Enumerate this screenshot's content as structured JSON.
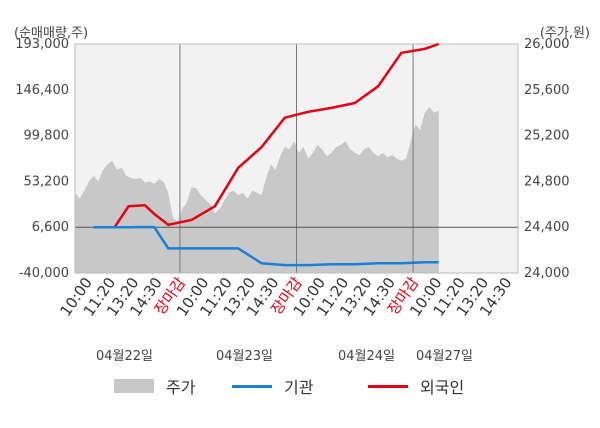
{
  "chart_data": {
    "type": "line",
    "left_axis_label": "(순매매량,주)",
    "right_axis_label": "(주가,원)",
    "left_ticks": [
      "193,000",
      "146,400",
      "99,800",
      "53,200",
      "6,600",
      "-40,000"
    ],
    "right_ticks": [
      "26,000",
      "25,600",
      "25,200",
      "24,800",
      "24,400",
      "24,000"
    ],
    "left_ylim": [
      -40000,
      193000
    ],
    "right_ylim": [
      24000,
      26000
    ],
    "x_ticks": [
      "10:00",
      "11:20",
      "13:20",
      "14:30",
      "장마감",
      "10:00",
      "11:20",
      "13:20",
      "14:30",
      "장마감",
      "10:00",
      "11:20",
      "13:20",
      "14:30",
      "장마감",
      "10:00",
      "11:20",
      "13:20",
      "14:30"
    ],
    "x_tick_colors": [
      "#333",
      "#333",
      "#333",
      "#333",
      "#e60012",
      "#333",
      "#333",
      "#333",
      "#333",
      "#e60012",
      "#333",
      "#333",
      "#333",
      "#333",
      "#e60012",
      "#333",
      "#333",
      "#333",
      "#333"
    ],
    "dates": [
      "04월22일",
      "04월23일",
      "04월24일",
      "04월27일"
    ],
    "zero_line": 6600,
    "series": [
      {
        "name": "외국인",
        "color": "#e60012",
        "x": [
          0.8,
          1.7,
          2.3,
          3.0,
          3.4,
          4.0,
          5.0,
          6.0,
          7.0,
          8.0,
          9.0,
          10.0,
          11.0,
          12.0,
          13.0,
          14.0,
          15.0,
          15.6
        ],
        "values": [
          6600,
          6600,
          28000,
          29000,
          20000,
          9000,
          14000,
          28000,
          67000,
          88000,
          118000,
          124000,
          128000,
          133000,
          150000,
          184000,
          188000,
          193000
        ]
      },
      {
        "name": "기관",
        "color": "#1a7fd6",
        "x": [
          0.8,
          1.7,
          2.3,
          3.0,
          3.4,
          4.0,
          5.0,
          6.0,
          7.0,
          8.0,
          9.0,
          10.0,
          11.0,
          12.0,
          13.0,
          14.0,
          15.0,
          15.6
        ],
        "values": [
          6600,
          6600,
          6600,
          6800,
          6600,
          -15000,
          -15000,
          -15000,
          -15000,
          -30000,
          -32000,
          -32000,
          -31000,
          -31000,
          -30000,
          -30000,
          -29000,
          -29000
        ]
      }
    ],
    "price": {
      "name": "주가",
      "color": "#c8c8c8",
      "x": [
        0,
        0.2,
        0.4,
        0.6,
        0.8,
        1.0,
        1.2,
        1.4,
        1.6,
        1.8,
        2.0,
        2.2,
        2.4,
        2.6,
        2.8,
        3.0,
        3.2,
        3.4,
        3.6,
        3.8,
        4.0,
        4.2,
        4.4,
        4.6,
        4.8,
        5.0,
        5.2,
        5.4,
        5.6,
        5.8,
        6.0,
        6.2,
        6.4,
        6.6,
        6.8,
        7.0,
        7.2,
        7.4,
        7.6,
        7.8,
        8.0,
        8.2,
        8.4,
        8.6,
        8.8,
        9.0,
        9.2,
        9.4,
        9.6,
        9.8,
        10.0,
        10.2,
        10.4,
        10.6,
        10.8,
        11.0,
        11.2,
        11.4,
        11.6,
        11.8,
        12.0,
        12.2,
        12.4,
        12.6,
        12.8,
        13.0,
        13.2,
        13.4,
        13.6,
        13.8,
        14.0,
        14.2,
        14.4,
        14.6,
        14.8,
        15.0,
        15.2,
        15.4,
        15.6
      ],
      "values": [
        24700,
        24650,
        24720,
        24800,
        24850,
        24800,
        24900,
        24950,
        24980,
        24900,
        24920,
        24850,
        24830,
        24820,
        24830,
        24790,
        24800,
        24780,
        24820,
        24800,
        24700,
        24480,
        24450,
        24560,
        24620,
        24750,
        24740,
        24680,
        24640,
        24600,
        24520,
        24560,
        24630,
        24700,
        24720,
        24680,
        24700,
        24650,
        24720,
        24700,
        24680,
        24830,
        24950,
        24900,
        25020,
        25100,
        25080,
        25150,
        25050,
        25100,
        25000,
        25050,
        25120,
        25080,
        25020,
        25050,
        25100,
        25120,
        25150,
        25080,
        25050,
        25030,
        25080,
        25100,
        25050,
        25020,
        25050,
        25010,
        25030,
        25000,
        24980,
        25000,
        25150,
        25300,
        25250,
        25400,
        25450,
        25400,
        25420
      ]
    }
  }
}
